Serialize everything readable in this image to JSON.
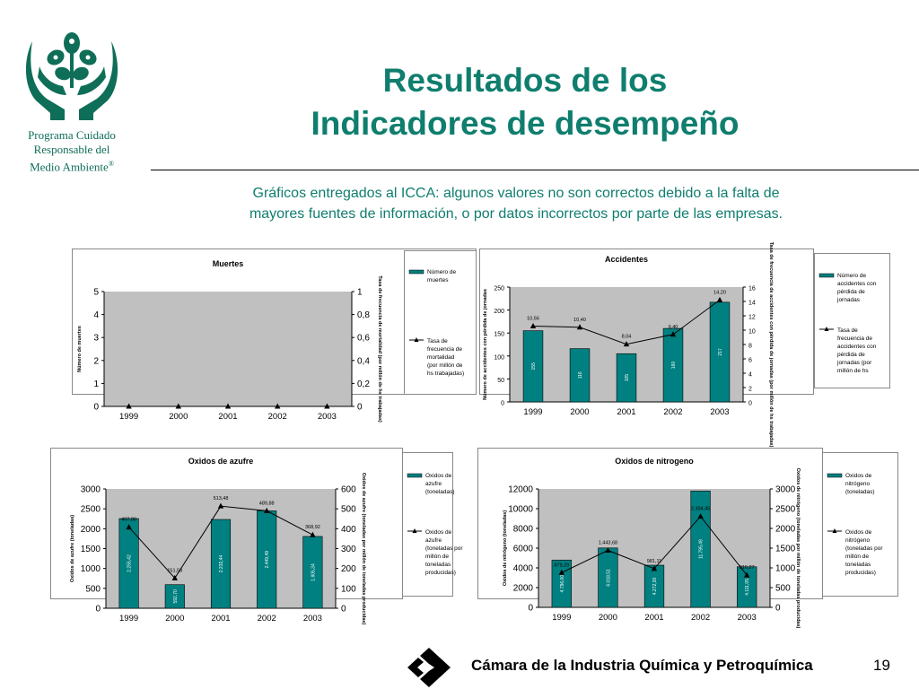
{
  "header": {
    "program_line1": "Programa Cuidado",
    "program_line2": "Responsable del",
    "program_line3": "Medio Ambiente",
    "program_mark": "®",
    "title_line1": "Resultados de los",
    "title_line2": "Indicadores de desempeño",
    "subtitle_line1": "Gráficos entregados al ICCA: algunos valores no son correctos debido a la falta de",
    "subtitle_line2": "mayores fuentes de información, o por datos incorrectos por parte de las empresas."
  },
  "colors": {
    "brand_green": "#0f7e6e",
    "bar": "#008080",
    "plot_bg": "#c0c0c0",
    "line": "#000000"
  },
  "icons": {
    "logo": "hands-holding-leaves-logo",
    "footer_logo": "camara-diamond-logo"
  },
  "chart_data": [
    {
      "type": "bar+line",
      "title": "Muertes",
      "categories": [
        "1999",
        "2000",
        "2001",
        "2002",
        "2003"
      ],
      "ylabel": "Número de muertes",
      "y2label": "Tasa de frecuencia de mortalidad (por millón de hs trabajadas)",
      "ylim": [
        0,
        5
      ],
      "y2lim": [
        0,
        1
      ],
      "yticks": [
        "0",
        "1",
        "2",
        "3",
        "4",
        "5"
      ],
      "y2ticks": [
        "0",
        "0,2",
        "0,4",
        "0,6",
        "0,8",
        "1"
      ],
      "series": [
        {
          "name": "Número de muertes",
          "kind": "bar",
          "values": [
            0,
            0,
            0,
            0,
            0
          ],
          "labels": []
        },
        {
          "name": "Tasa de frecuencia de mortalidad (por millón de hs trabajadas)",
          "kind": "line",
          "axis": "right",
          "values": [
            0,
            0,
            0,
            0,
            0
          ],
          "labels": []
        }
      ],
      "grid": false,
      "legend": "right"
    },
    {
      "type": "bar+line",
      "title": "Accidentes",
      "categories": [
        "1999",
        "2000",
        "2001",
        "2002",
        "2003"
      ],
      "ylabel": "Número de accidentes con pérdida de jornadas",
      "y2label": "Tasa de frecuencia de accidentes con pérdida de jornadas (por millón de hs trabajadas)",
      "ylim": [
        0,
        250
      ],
      "y2lim": [
        0,
        16
      ],
      "yticks": [
        "0",
        "50",
        "100",
        "150",
        "200",
        "250"
      ],
      "y2ticks": [
        "0",
        "2",
        "4",
        "6",
        "8",
        "10",
        "12",
        "14",
        "16"
      ],
      "series": [
        {
          "name": "Número de accidentes con pérdida de jornadas",
          "kind": "bar",
          "values": [
            155,
            116,
            105,
            160,
            217
          ],
          "labels": [
            "155",
            "116",
            "105",
            "160",
            "217"
          ]
        },
        {
          "name": "Tasa de frecuencia de accidentes con pérdida de jornadas (por millón de hs",
          "kind": "line",
          "axis": "right",
          "values": [
            10.56,
            10.4,
            8.04,
            9.4,
            14.2
          ],
          "labels": [
            "10,56",
            "10,40",
            "8,04",
            "9,40",
            "14,20"
          ]
        }
      ],
      "grid": false,
      "legend": "right"
    },
    {
      "type": "bar+line",
      "title": "Oxidos de azufre",
      "categories": [
        "1999",
        "2000",
        "2001",
        "2002",
        "2003"
      ],
      "ylabel": "Oxidos de azufre (toneladas)",
      "y2label": "Oxidos de azufre (toneladas por millón de toneladas producidas)",
      "ylim": [
        0,
        3000
      ],
      "y2lim": [
        0,
        600
      ],
      "yticks": [
        "0",
        "500",
        "1000",
        "1500",
        "2000",
        "2500",
        "3000"
      ],
      "y2ticks": [
        "0",
        "100",
        "200",
        "300",
        "400",
        "500",
        "600"
      ],
      "series": [
        {
          "name": "Oxidos de azufre (toneladas)",
          "kind": "bar",
          "values": [
            2255.42,
            592.7,
            2232.44,
            2449.49,
            1805.34
          ],
          "labels": [
            "2.255,42",
            "592,70",
            "2.232,44",
            "2.449,49",
            "1.805,34"
          ]
        },
        {
          "name": "Oxidos de azufre (toneladas por millón de toneladas producidas)",
          "kind": "line",
          "axis": "right",
          "values": [
            407.86,
            151.58,
            513.48,
            489.88,
            368.92
          ],
          "labels": [
            "407,86",
            "151,58",
            "513,48",
            "489,88",
            "368,92"
          ]
        }
      ],
      "grid": false,
      "legend": "right"
    },
    {
      "type": "bar+line",
      "title": "Oxidos de nitrogeno",
      "categories": [
        "1999",
        "2000",
        "2001",
        "2002",
        "2003"
      ],
      "ylabel": "Oxidos de nitrógeno (toneladas)",
      "y2label": "Oxidos de nitrógeno (toneladas por millón de toneladas producidas)",
      "ylim": [
        0,
        12000
      ],
      "y2lim": [
        0,
        3000
      ],
      "yticks": [
        "0",
        "2000",
        "4000",
        "6000",
        "8000",
        "10000",
        "12000"
      ],
      "y2ticks": [
        "0",
        "500",
        "1000",
        "1500",
        "2000",
        "2500",
        "3000"
      ],
      "series": [
        {
          "name": "Oxidos de nitrógeno (toneladas)",
          "kind": "bar",
          "values": [
            4796,
            6018.51,
            4272.3,
            11795.49,
            4111.05
          ],
          "labels": [
            "4.796,00",
            "6.018,51",
            "4.272,30",
            "11.795,49",
            "4.111,05"
          ]
        },
        {
          "name": "Oxidos de nitrógeno (toneladas por millón de toneladas producidas)",
          "kind": "line",
          "axis": "right",
          "values": [
            879.29,
            1443.68,
            981.11,
            2304.45,
            816.27
          ],
          "labels": [
            "879,29",
            "1.443,68",
            "981,11",
            "2.304,45",
            "816,27"
          ]
        }
      ],
      "grid": false,
      "legend": "right"
    }
  ],
  "footer": {
    "org": "Cámara de la Industria Química y Petroquímica",
    "page": "19"
  }
}
